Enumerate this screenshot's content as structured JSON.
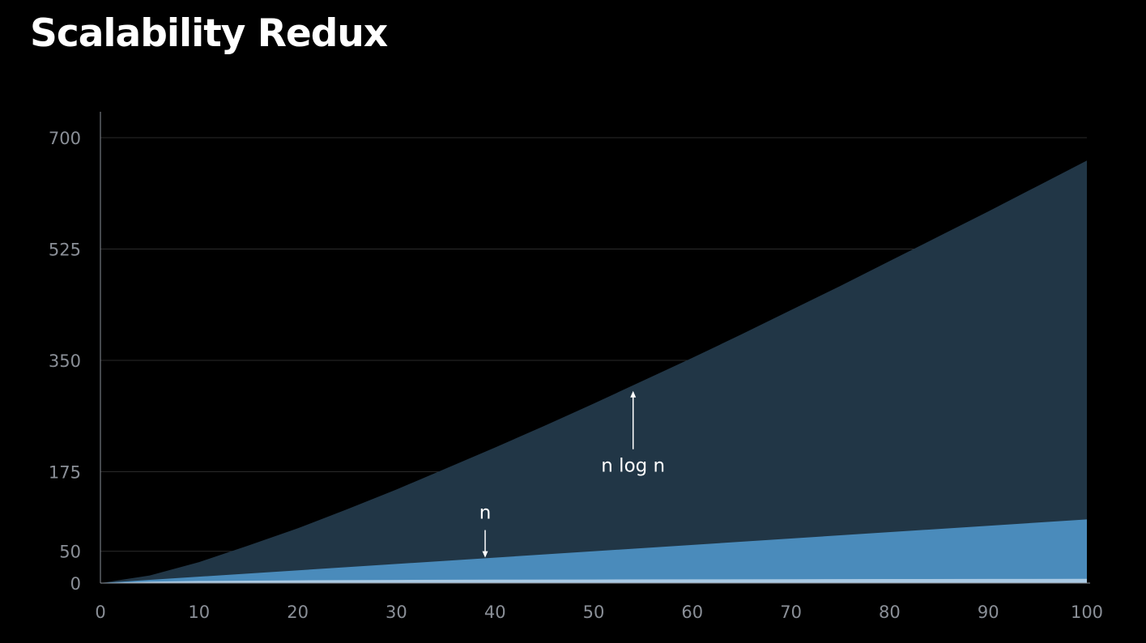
{
  "title": "Scalability Redux",
  "colors": {
    "background": "#000000",
    "nlogn_fill": "#213646",
    "n_fill": "#4a8bbb",
    "logn_fill": "#a9c9e3",
    "grid": "#2a2a2a",
    "axis": "#8a8f97",
    "annotation": "#ffffff"
  },
  "chart_data": {
    "type": "area",
    "title": "Scalability Redux",
    "xlabel": "",
    "ylabel": "",
    "xlim": [
      0,
      100
    ],
    "ylim": [
      0,
      700
    ],
    "x_ticks": [
      0,
      10,
      20,
      30,
      40,
      50,
      60,
      70,
      80,
      90,
      100
    ],
    "y_ticks": [
      0,
      50,
      175,
      350,
      525,
      700
    ],
    "grid": "horizontal",
    "legend": "none",
    "series": [
      {
        "key": "nlogn",
        "x": [
          0,
          5,
          10,
          15,
          20,
          25,
          30,
          35,
          40,
          45,
          50,
          55,
          60,
          65,
          70,
          75,
          80,
          85,
          90,
          95,
          100
        ],
        "values": [
          0,
          12,
          33,
          59,
          86,
          116,
          147,
          180,
          213,
          247,
          282,
          318,
          354,
          391,
          429,
          467,
          506,
          545,
          584,
          624,
          664
        ],
        "color": "#213646"
      },
      {
        "key": "n",
        "x": [
          0,
          100
        ],
        "values": [
          0,
          100
        ],
        "color": "#4a8bbb"
      },
      {
        "key": "logn",
        "x": [
          0,
          5,
          10,
          20,
          30,
          40,
          50,
          60,
          70,
          80,
          90,
          100
        ],
        "values": [
          0,
          2.3,
          3.3,
          4.3,
          4.9,
          5.3,
          5.6,
          5.9,
          6.1,
          6.3,
          6.5,
          6.6
        ],
        "color": "#a9c9e3"
      }
    ],
    "annotations": [
      {
        "key": "nlogn",
        "text": "n log n",
        "arrow": "up",
        "target_x": 54,
        "target_y": 302
      },
      {
        "key": "n",
        "text": "n",
        "arrow": "down",
        "target_x": 39,
        "target_y": 40
      }
    ]
  }
}
